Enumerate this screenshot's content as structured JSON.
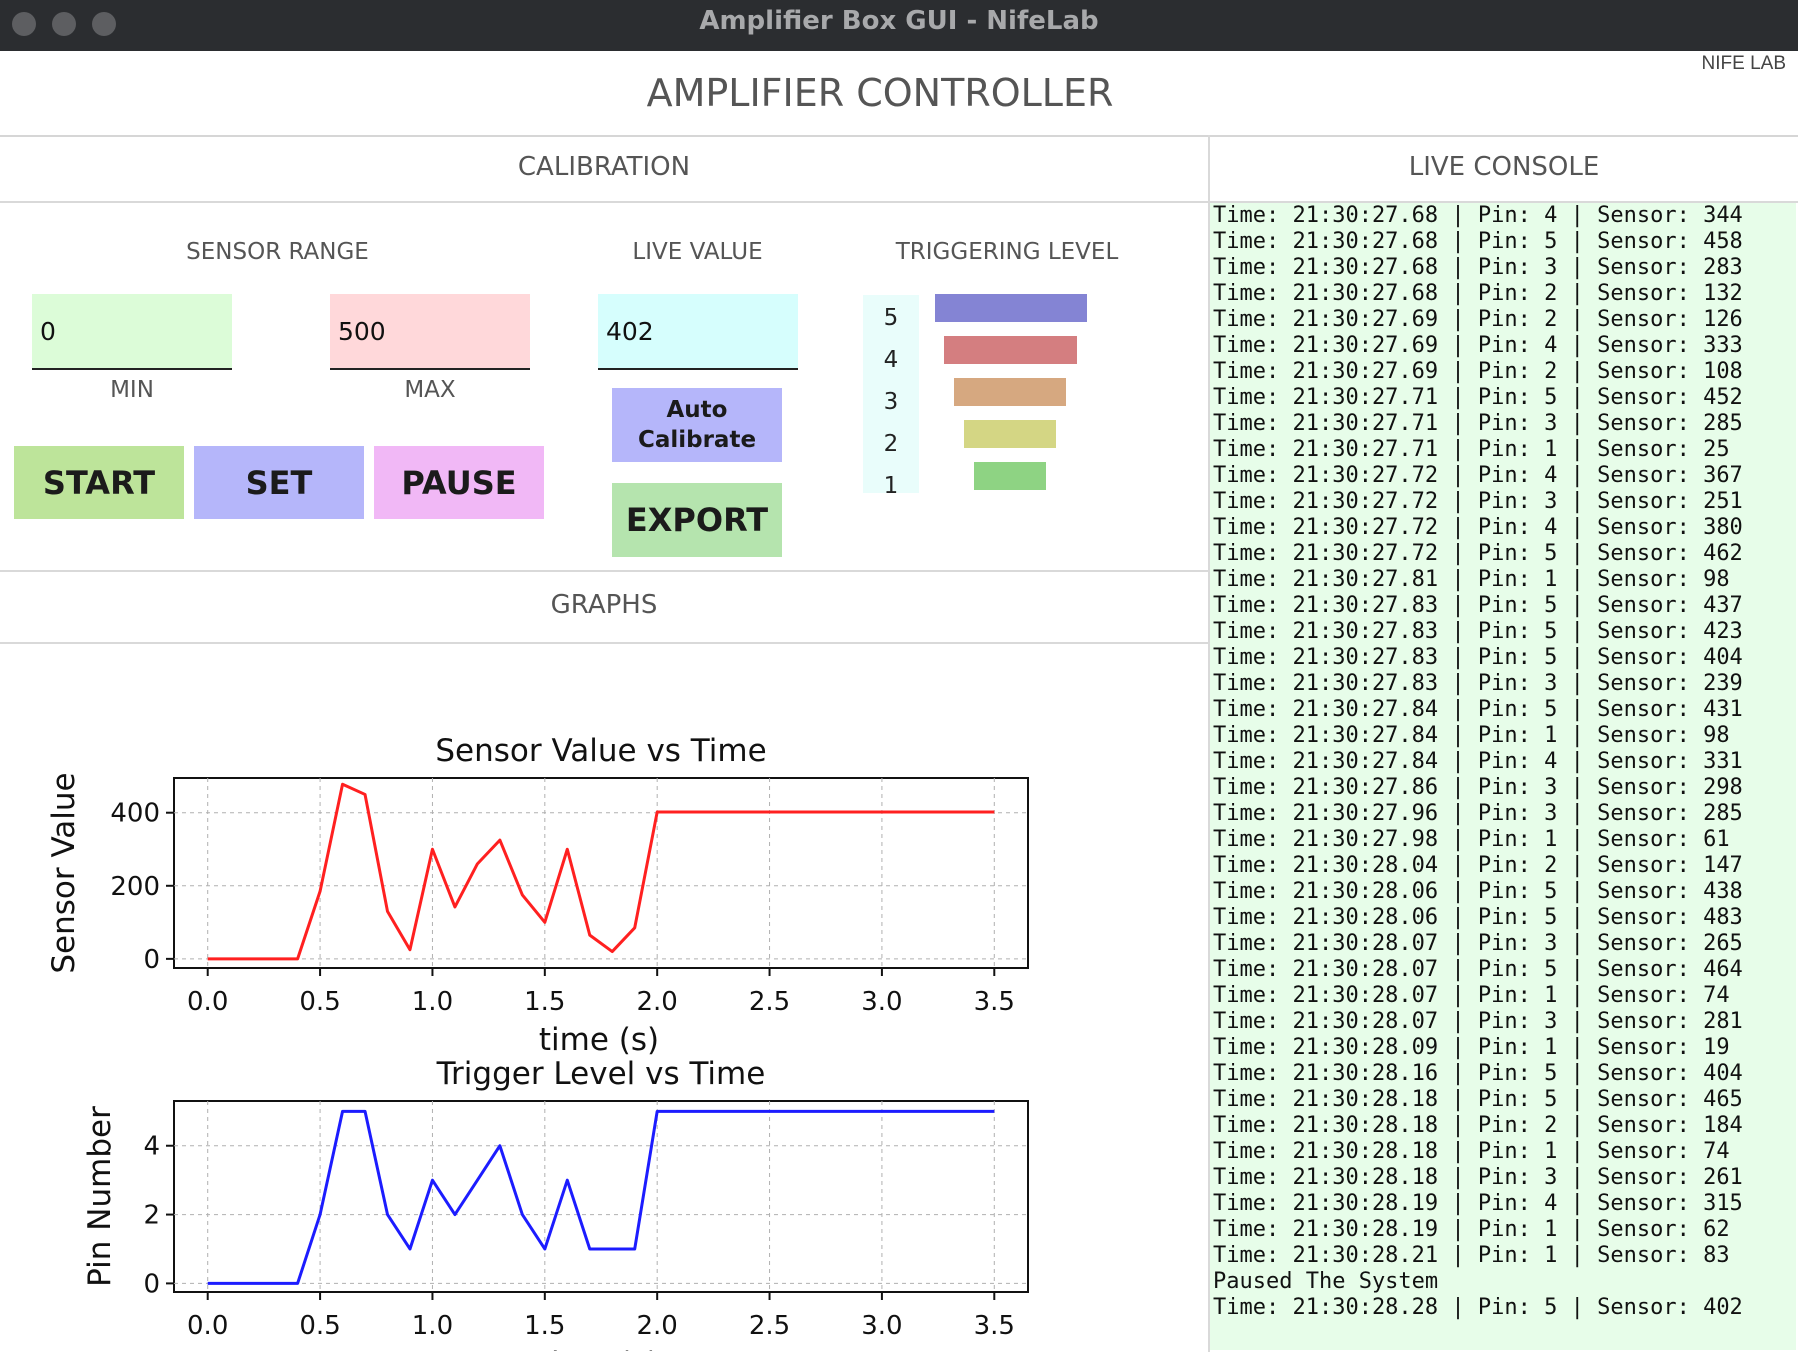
{
  "window": {
    "title": "Amplifier Box GUI - NifeLab"
  },
  "header": {
    "title": "AMPLIFIER CONTROLLER",
    "brand": "NIFE LAB"
  },
  "calibration": {
    "title": "CALIBRATION",
    "sensor_range_label": "SENSOR RANGE",
    "min_value": "0",
    "min_label": "MIN",
    "max_value": "500",
    "max_label": "MAX",
    "live_value_label": "LIVE VALUE",
    "live_value": "402",
    "triggering_level_label": "TRIGGERING LEVEL",
    "levels": [
      "5",
      "4",
      "3",
      "2",
      "1"
    ],
    "level_colors": [
      "#8484d4",
      "#d47e80",
      "#d6a880",
      "#d4d684",
      "#8ed383"
    ],
    "buttons": {
      "start": "START",
      "set": "SET",
      "pause": "PAUSE",
      "auto_calibrate_line1": "Auto",
      "auto_calibrate_line2": "Calibrate",
      "export": "EXPORT"
    },
    "button_colors": {
      "start": "#bde49a",
      "set": "#b5b6fa",
      "pause": "#f1b8f6",
      "auto_calibrate": "#b5b6fa",
      "export": "#b5e4ae"
    },
    "field_colors": {
      "min": "#dcfcd8",
      "max": "#ffd8da",
      "live": "#d6fefd"
    }
  },
  "graphs": {
    "title": "GRAPHS",
    "chart_data": [
      {
        "type": "line",
        "title": "Sensor Value vs Time",
        "xlabel": "time (s)",
        "ylabel": "Sensor Value",
        "x": [
          0.0,
          0.4,
          0.5,
          0.6,
          0.7,
          0.8,
          0.9,
          1.0,
          1.1,
          1.2,
          1.3,
          1.4,
          1.5,
          1.6,
          1.7,
          1.8,
          1.9,
          2.0,
          3.5
        ],
        "series": [
          {
            "color": "#ff2020",
            "values": [
              0,
              0,
              185,
              478,
              450,
              130,
              25,
              300,
              142,
              260,
              325,
              175,
              100,
              300,
              65,
              20,
              85,
              402,
              402
            ]
          }
        ],
        "xlim": [
          -0.15,
          3.65
        ],
        "ylim": [
          -25,
          495
        ],
        "xticks": [
          "0.0",
          "0.5",
          "1.0",
          "1.5",
          "2.0",
          "2.5",
          "3.0",
          "3.5"
        ],
        "yticks": [
          "0",
          "200",
          "400"
        ],
        "grid": true
      },
      {
        "type": "line",
        "title": "Trigger Level vs Time",
        "xlabel": "time (s)",
        "ylabel": "Pin Number",
        "x": [
          0.0,
          0.4,
          0.5,
          0.6,
          0.7,
          0.8,
          0.9,
          1.0,
          1.1,
          1.2,
          1.3,
          1.4,
          1.5,
          1.6,
          1.7,
          1.8,
          1.9,
          2.0,
          3.5
        ],
        "series": [
          {
            "color": "#1c1cff",
            "values": [
              0,
              0,
              2,
              5,
              5,
              2,
              1,
              3,
              2,
              3,
              4,
              2,
              1,
              3,
              1,
              1,
              1,
              5,
              5
            ]
          }
        ],
        "xlim": [
          -0.15,
          3.65
        ],
        "ylim": [
          -0.25,
          5.3
        ],
        "xticks": [
          "0.0",
          "0.5",
          "1.0",
          "1.5",
          "2.0",
          "2.5",
          "3.0",
          "3.5"
        ],
        "yticks": [
          "0",
          "2",
          "4"
        ],
        "grid": true
      }
    ]
  },
  "console": {
    "title": "LIVE CONSOLE",
    "lines": [
      "Time: 21:30:27.68 | Pin: 4 | Sensor: 344",
      "Time: 21:30:27.68 | Pin: 5 | Sensor: 458",
      "Time: 21:30:27.68 | Pin: 3 | Sensor: 283",
      "Time: 21:30:27.68 | Pin: 2 | Sensor: 132",
      "Time: 21:30:27.69 | Pin: 2 | Sensor: 126",
      "Time: 21:30:27.69 | Pin: 4 | Sensor: 333",
      "Time: 21:30:27.69 | Pin: 2 | Sensor: 108",
      "Time: 21:30:27.71 | Pin: 5 | Sensor: 452",
      "Time: 21:30:27.71 | Pin: 3 | Sensor: 285",
      "Time: 21:30:27.71 | Pin: 1 | Sensor: 25",
      "Time: 21:30:27.72 | Pin: 4 | Sensor: 367",
      "Time: 21:30:27.72 | Pin: 3 | Sensor: 251",
      "Time: 21:30:27.72 | Pin: 4 | Sensor: 380",
      "Time: 21:30:27.72 | Pin: 5 | Sensor: 462",
      "Time: 21:30:27.81 | Pin: 1 | Sensor: 98",
      "Time: 21:30:27.83 | Pin: 5 | Sensor: 437",
      "Time: 21:30:27.83 | Pin: 5 | Sensor: 423",
      "Time: 21:30:27.83 | Pin: 5 | Sensor: 404",
      "Time: 21:30:27.83 | Pin: 3 | Sensor: 239",
      "Time: 21:30:27.84 | Pin: 5 | Sensor: 431",
      "Time: 21:30:27.84 | Pin: 1 | Sensor: 98",
      "Time: 21:30:27.84 | Pin: 4 | Sensor: 331",
      "Time: 21:30:27.86 | Pin: 3 | Sensor: 298",
      "Time: 21:30:27.96 | Pin: 3 | Sensor: 285",
      "Time: 21:30:27.98 | Pin: 1 | Sensor: 61",
      "Time: 21:30:28.04 | Pin: 2 | Sensor: 147",
      "Time: 21:30:28.06 | Pin: 5 | Sensor: 438",
      "Time: 21:30:28.06 | Pin: 5 | Sensor: 483",
      "Time: 21:30:28.07 | Pin: 3 | Sensor: 265",
      "Time: 21:30:28.07 | Pin: 5 | Sensor: 464",
      "Time: 21:30:28.07 | Pin: 1 | Sensor: 74",
      "Time: 21:30:28.07 | Pin: 3 | Sensor: 281",
      "Time: 21:30:28.09 | Pin: 1 | Sensor: 19",
      "Time: 21:30:28.16 | Pin: 5 | Sensor: 404",
      "Time: 21:30:28.18 | Pin: 5 | Sensor: 465",
      "Time: 21:30:28.18 | Pin: 2 | Sensor: 184",
      "Time: 21:30:28.18 | Pin: 1 | Sensor: 74",
      "Time: 21:30:28.18 | Pin: 3 | Sensor: 261",
      "Time: 21:30:28.19 | Pin: 4 | Sensor: 315",
      "Time: 21:30:28.19 | Pin: 1 | Sensor: 62",
      "Time: 21:30:28.21 | Pin: 1 | Sensor: 83",
      "Paused The System",
      "Time: 21:30:28.28 | Pin: 5 | Sensor: 402"
    ]
  }
}
